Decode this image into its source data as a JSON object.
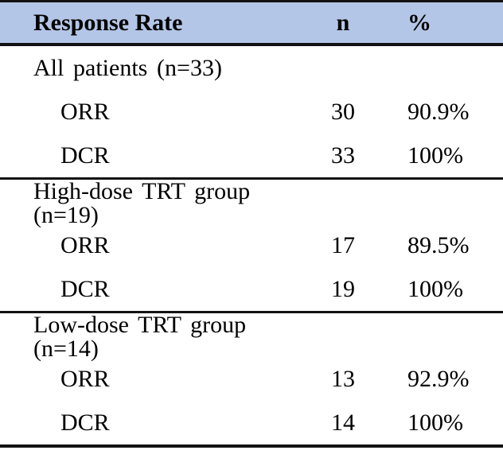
{
  "table": {
    "header": {
      "response_rate": "Response Rate",
      "n": "n",
      "percent": "%"
    },
    "sections": [
      {
        "label": "All patients (n=33)",
        "rows": [
          {
            "name": "ORR",
            "n": "30",
            "pct": "90.9%"
          },
          {
            "name": "DCR",
            "n": "33",
            "pct": "100%"
          }
        ]
      },
      {
        "label": "High-dose TRT group (n=19)",
        "rows": [
          {
            "name": "ORR",
            "n": "17",
            "pct": "89.5%"
          },
          {
            "name": "DCR",
            "n": "19",
            "pct": "100%"
          }
        ]
      },
      {
        "label": "Low-dose TRT group (n=14)",
        "rows": [
          {
            "name": "ORR",
            "n": "13",
            "pct": "92.9%"
          },
          {
            "name": "DCR",
            "n": "14",
            "pct": "100%"
          }
        ]
      }
    ],
    "colors": {
      "header_bg": "#b4c6e7",
      "rule": "#121212",
      "text": "#000000"
    }
  }
}
